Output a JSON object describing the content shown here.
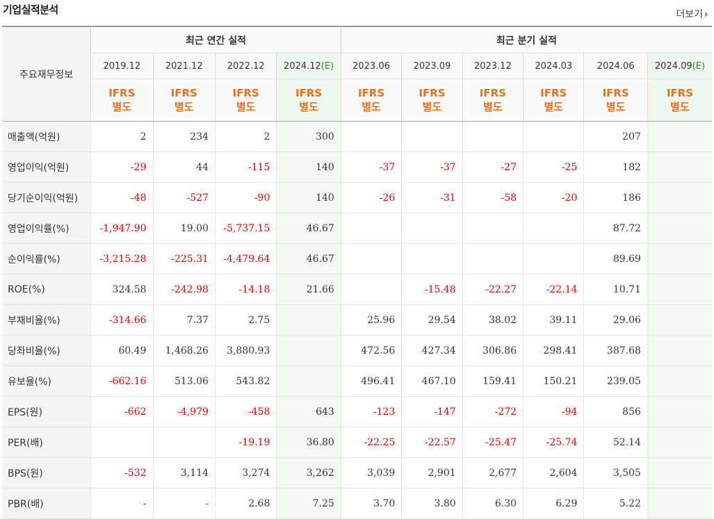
{
  "title": "기업실적분석",
  "more_label": "더보기",
  "row_header": "주요재무정보",
  "groups": {
    "annual": "최근 연간 실적",
    "quarter": "최근 분기 실적"
  },
  "periods": [
    {
      "label": "2019.12",
      "est": ""
    },
    {
      "label": "2021.12",
      "est": ""
    },
    {
      "label": "2022.12",
      "est": ""
    },
    {
      "label": "2024.12",
      "est": "(E)"
    },
    {
      "label": "2023.06",
      "est": ""
    },
    {
      "label": "2023.09",
      "est": ""
    },
    {
      "label": "2023.12",
      "est": ""
    },
    {
      "label": "2024.03",
      "est": ""
    },
    {
      "label": "2024.06",
      "est": ""
    },
    {
      "label": "2024.09",
      "est": "(E)"
    }
  ],
  "tag_top": "IFRS",
  "tag_bottom": "별도",
  "rows": [
    {
      "label": "매출액(억원)",
      "values": [
        "2",
        "234",
        "2",
        "300",
        "",
        "",
        "",
        "",
        "207",
        ""
      ]
    },
    {
      "label": "영업이익(억원)",
      "values": [
        "-29",
        "44",
        "-115",
        "140",
        "-37",
        "-37",
        "-27",
        "-25",
        "182",
        ""
      ]
    },
    {
      "label": "당기순이익(억원)",
      "values": [
        "-48",
        "-527",
        "-90",
        "140",
        "-26",
        "-31",
        "-58",
        "-20",
        "186",
        ""
      ]
    },
    {
      "label": "영업이익률(%)",
      "values": [
        "-1,947.90",
        "19.00",
        "-5,737.15",
        "46.67",
        "",
        "",
        "",
        "",
        "87.72",
        ""
      ]
    },
    {
      "label": "순이익률(%)",
      "values": [
        "-3,215.28",
        "-225.31",
        "-4,479.64",
        "46.67",
        "",
        "",
        "",
        "",
        "89.69",
        ""
      ]
    },
    {
      "label": "ROE(%)",
      "values": [
        "324.58",
        "-242.98",
        "-14.18",
        "21.66",
        "",
        "-15.48",
        "-22.27",
        "-22.14",
        "10.71",
        ""
      ]
    },
    {
      "label": "부채비율(%)",
      "values": [
        "-314.66",
        "7.37",
        "2.75",
        "",
        "25.96",
        "29.54",
        "38.02",
        "39.11",
        "29.06",
        ""
      ]
    },
    {
      "label": "당좌비율(%)",
      "values": [
        "60.49",
        "1,468.26",
        "3,880.93",
        "",
        "472.56",
        "427.34",
        "306.86",
        "298.41",
        "387.68",
        ""
      ]
    },
    {
      "label": "유보율(%)",
      "values": [
        "-662.16",
        "513.06",
        "543.82",
        "",
        "496.41",
        "467.10",
        "159.41",
        "150.21",
        "239.05",
        ""
      ]
    },
    {
      "label": "EPS(원)",
      "values": [
        "-662",
        "-4,979",
        "-458",
        "643",
        "-123",
        "-147",
        "-272",
        "-94",
        "856",
        ""
      ]
    },
    {
      "label": "PER(배)",
      "values": [
        "",
        "",
        "-19.19",
        "36.80",
        "-22.25",
        "-22.57",
        "-25.47",
        "-25.74",
        "52.14",
        ""
      ]
    },
    {
      "label": "BPS(원)",
      "values": [
        "-532",
        "3,114",
        "3,274",
        "3,262",
        "3,039",
        "2,901",
        "2,677",
        "2,604",
        "3,505",
        ""
      ]
    },
    {
      "label": "PBR(배)",
      "values": [
        "-",
        "-",
        "2.68",
        "7.25",
        "3.70",
        "3.80",
        "6.30",
        "6.29",
        "5.22",
        ""
      ]
    }
  ]
}
